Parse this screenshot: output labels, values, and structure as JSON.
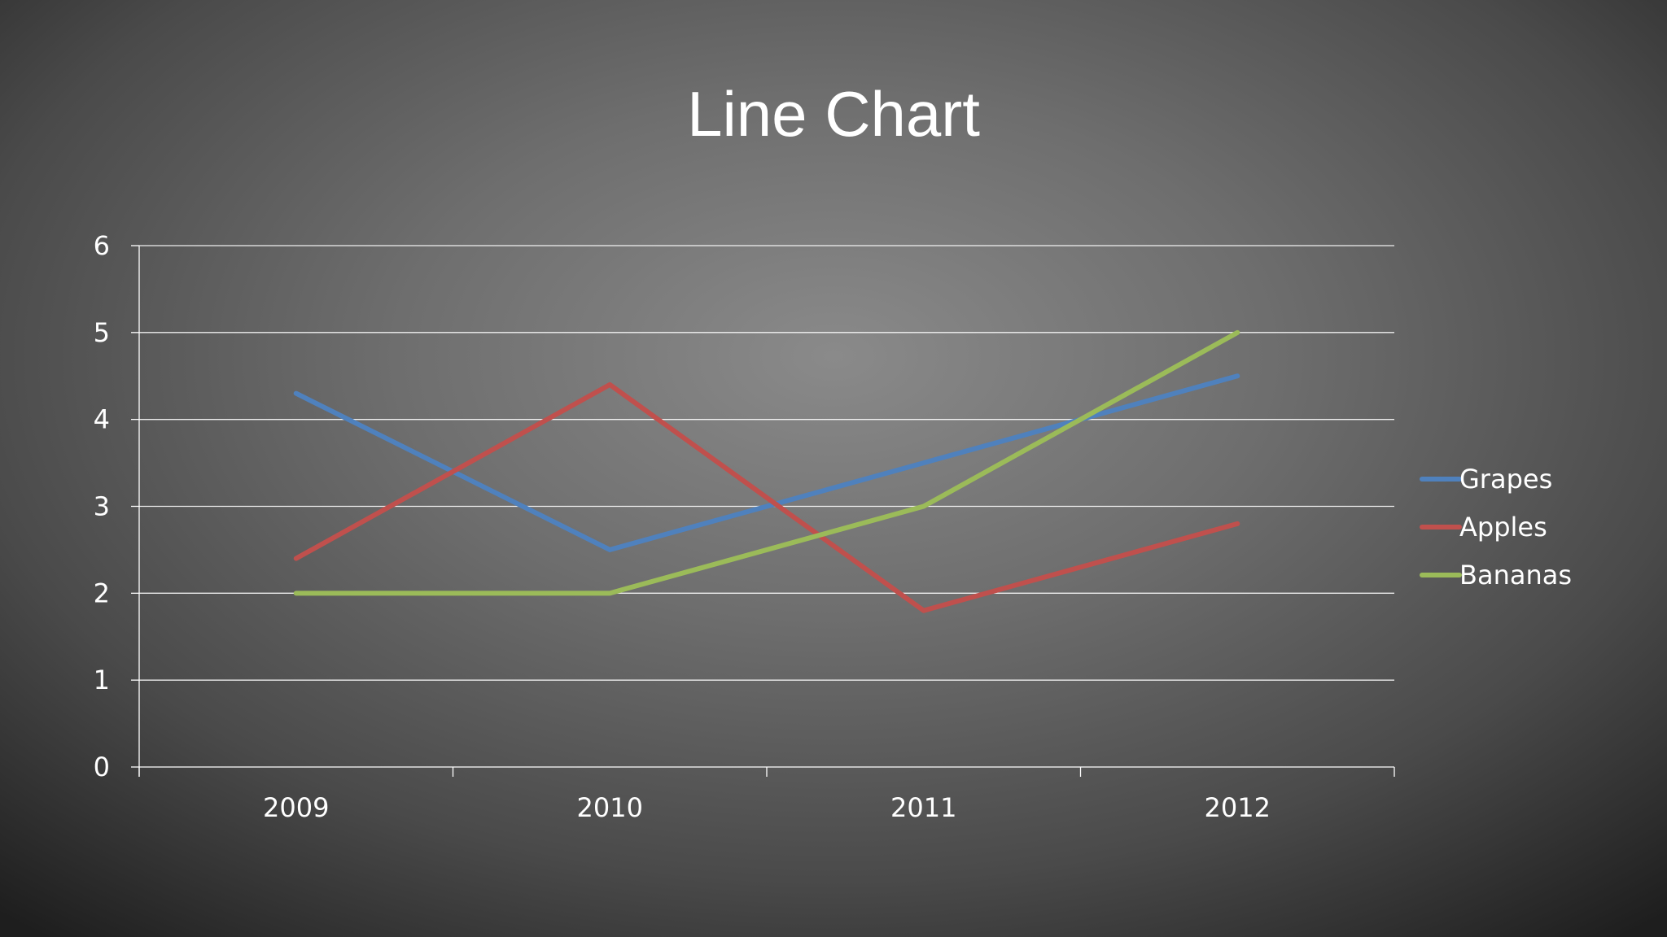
{
  "chart_data": {
    "type": "line",
    "title": "Line Chart",
    "xlabel": "",
    "ylabel": "",
    "categories": [
      "2009",
      "2010",
      "2011",
      "2012"
    ],
    "ylim": [
      0,
      6
    ],
    "yticks": [
      "0",
      "1",
      "2",
      "3",
      "4",
      "5",
      "6"
    ],
    "grid": true,
    "legend": "right",
    "series": [
      {
        "name": "Grapes",
        "color": "#4f81bd",
        "values": [
          4.3,
          2.5,
          3.5,
          4.5
        ]
      },
      {
        "name": "Apples",
        "color": "#c0504d",
        "values": [
          2.4,
          4.4,
          1.8,
          2.8
        ]
      },
      {
        "name": "Bananas",
        "color": "#9bbb59",
        "values": [
          2.0,
          2.0,
          3.0,
          5.0
        ]
      }
    ]
  }
}
